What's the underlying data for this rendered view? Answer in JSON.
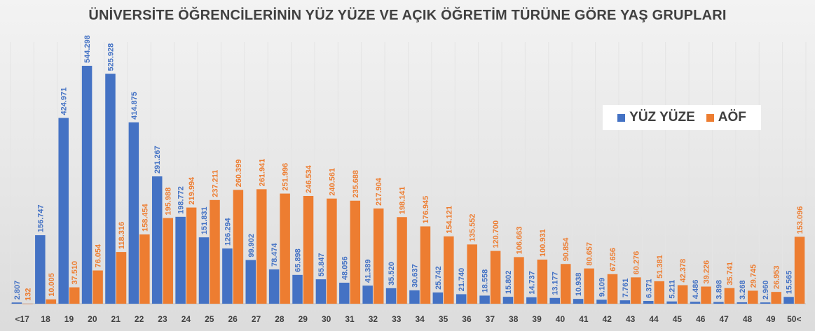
{
  "chart_data": {
    "type": "bar",
    "title": "ÜNİVERSİTE ÖĞRENCİLERİNİN YÜZ YÜZE VE AÇIK ÖĞRETİM TÜRÜNE GÖRE YAŞ GRUPLARI",
    "xlabel": "",
    "ylabel": "",
    "ylim": [
      0,
      600000
    ],
    "grid": true,
    "legend_position": "right",
    "colors": {
      "yuz_yuze": "#4472C4",
      "aof": "#ED7D31"
    },
    "categories": [
      "<17",
      "18",
      "19",
      "20",
      "21",
      "22",
      "23",
      "24",
      "25",
      "26",
      "27",
      "28",
      "29",
      "30",
      "31",
      "32",
      "33",
      "34",
      "35",
      "36",
      "37",
      "38",
      "39",
      "40",
      "41",
      "42",
      "43",
      "44",
      "45",
      "46",
      "47",
      "48",
      "49",
      "50<"
    ],
    "series": [
      {
        "name": "YÜZ YÜZE",
        "values": [
          2807,
          156747,
          424971,
          544298,
          525928,
          414875,
          291267,
          198772,
          151831,
          126294,
          99902,
          78474,
          65898,
          55847,
          48056,
          41389,
          35520,
          30637,
          25742,
          21740,
          18558,
          15802,
          14737,
          13177,
          10938,
          9109,
          7761,
          6371,
          5211,
          4486,
          3898,
          3268,
          2960,
          15565
        ],
        "labels": [
          "2.807",
          "156.747",
          "424.971",
          "544.298",
          "525.928",
          "414.875",
          "291.267",
          "198.772",
          "151.831",
          "126.294",
          "99.902",
          "78.474",
          "65.898",
          "55.847",
          "48.056",
          "41.389",
          "35.520",
          "30.637",
          "25.742",
          "21.740",
          "18.558",
          "15.802",
          "14.737",
          "13.177",
          "10.938",
          "9.109",
          "7.761",
          "6.371",
          "5.211",
          "4.486",
          "3.898",
          "3.268",
          "2.960",
          "15.565"
        ]
      },
      {
        "name": "AÖF",
        "values": [
          132,
          10005,
          37510,
          76054,
          118316,
          158454,
          195988,
          219994,
          237211,
          260399,
          261941,
          251996,
          246534,
          240561,
          235688,
          217904,
          198141,
          176945,
          154121,
          135552,
          120700,
          106663,
          100931,
          90854,
          80657,
          67656,
          60276,
          51381,
          42378,
          39226,
          35741,
          29745,
          26953,
          153096
        ],
        "labels": [
          "132",
          "10.005",
          "37.510",
          "76.054",
          "118.316",
          "158.454",
          "195.988",
          "219.994",
          "237.211",
          "260.399",
          "261.941",
          "251.996",
          "246.534",
          "240.561",
          "235.688",
          "217.904",
          "198.141",
          "176.945",
          "154.121",
          "135.552",
          "120.700",
          "106.663",
          "100.931",
          "90.854",
          "80.657",
          "67.656",
          "60.276",
          "51.381",
          "42.378",
          "39.226",
          "35.741",
          "29.745",
          "26.953",
          "153.096"
        ]
      }
    ]
  }
}
